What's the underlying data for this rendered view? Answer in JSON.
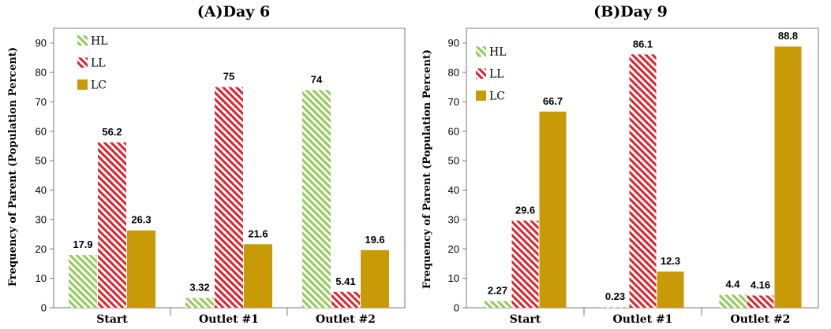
{
  "chart_data": [
    {
      "type": "bar",
      "title": "(A)Day 6",
      "ylabel": "Frequency of Parent (Population Percent)",
      "xlabel": "",
      "categories": [
        "Start",
        "Outlet #1",
        "Outlet #2"
      ],
      "ylim": [
        0,
        95
      ],
      "yticks": [
        0,
        10,
        20,
        30,
        40,
        50,
        60,
        70,
        80,
        90
      ],
      "grid": false,
      "legend_position": "top-left",
      "series": [
        {
          "name": "HL",
          "values": [
            17.9,
            3.32,
            74
          ],
          "labels": [
            "17.9",
            "3.32",
            "74"
          ],
          "color": "#8fcc55",
          "pattern": "hatch"
        },
        {
          "name": "LL",
          "values": [
            56.2,
            75,
            5.41
          ],
          "labels": [
            "56.2",
            "75",
            "5.41"
          ],
          "color": "#e0202a",
          "pattern": "hatch"
        },
        {
          "name": "LC",
          "values": [
            26.3,
            21.6,
            19.6
          ],
          "labels": [
            "26.3",
            "21.6",
            "19.6"
          ],
          "color": "#c99a08",
          "pattern": "solid"
        }
      ]
    },
    {
      "type": "bar",
      "title": "(B)Day 9",
      "ylabel": "Frequency of Parent (Population Percent)",
      "xlabel": "",
      "categories": [
        "Start",
        "Outlet #1",
        "Outlet #2"
      ],
      "ylim": [
        0,
        95
      ],
      "yticks": [
        0,
        10,
        20,
        30,
        40,
        50,
        60,
        70,
        80,
        90
      ],
      "grid": false,
      "legend_position": "top-left",
      "series": [
        {
          "name": "HL",
          "values": [
            2.27,
            0.23,
            4.4
          ],
          "labels": [
            "2.27",
            "0.23",
            "4.4"
          ],
          "color": "#8fcc55",
          "pattern": "hatch"
        },
        {
          "name": "LL",
          "values": [
            29.6,
            86.1,
            4.16
          ],
          "labels": [
            "29.6",
            "86.1",
            "4.16"
          ],
          "color": "#e0202a",
          "pattern": "hatch"
        },
        {
          "name": "LC",
          "values": [
            66.7,
            12.3,
            88.8
          ],
          "labels": [
            "66.7",
            "12.3",
            "88.8"
          ],
          "color": "#c99a08",
          "pattern": "solid"
        }
      ]
    }
  ]
}
